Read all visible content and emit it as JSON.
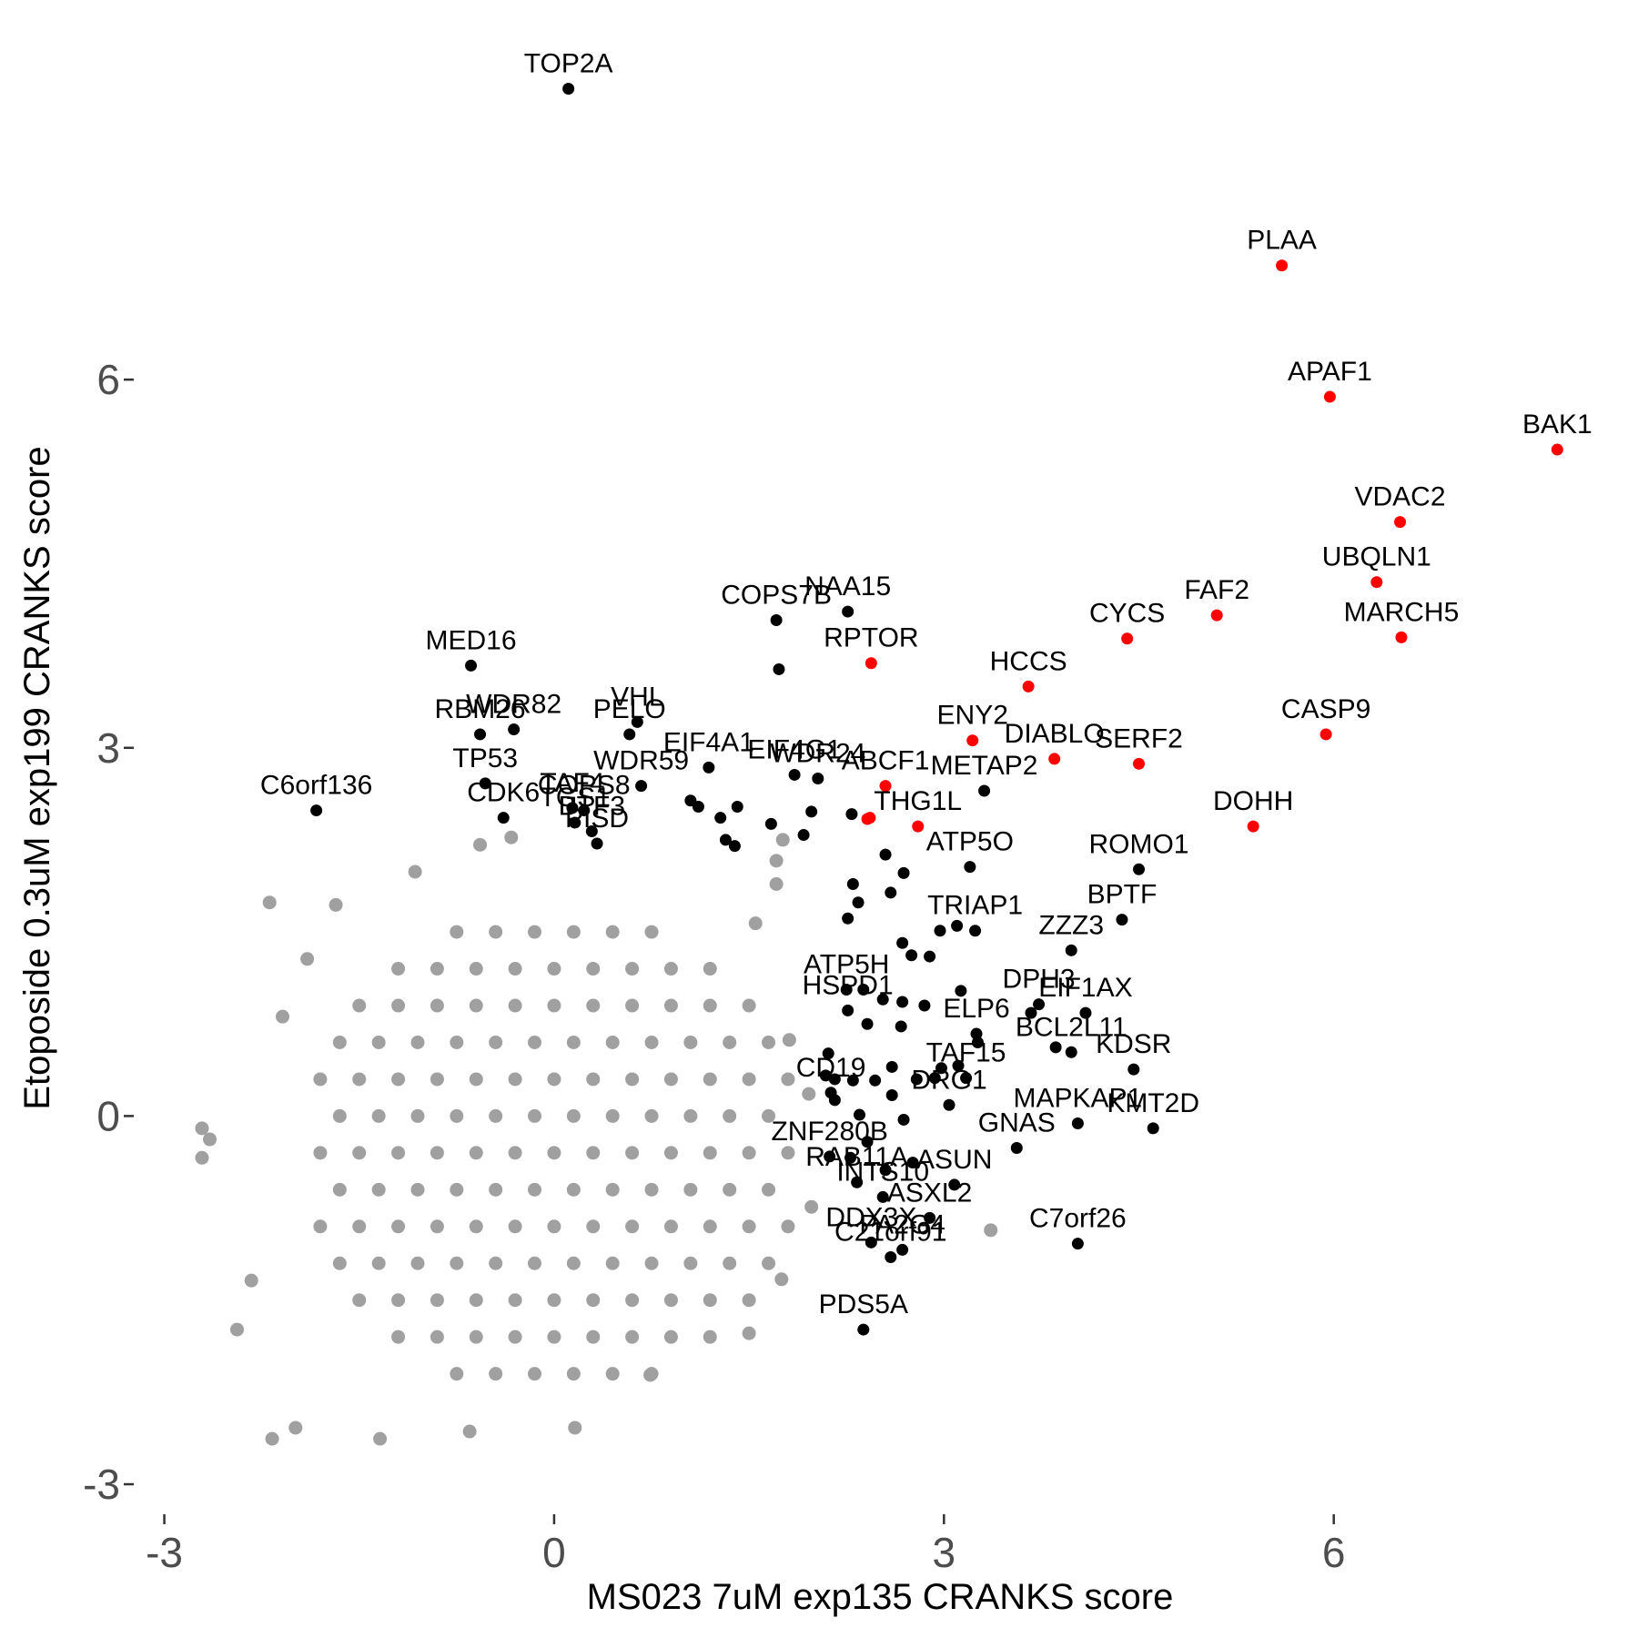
{
  "chart_data": {
    "type": "scatter",
    "x_label": "MS023 7uM exp135 CRANKS score",
    "y_label": "Etoposide 0.3uM exp199 CRANKS score",
    "xlim": [
      -3.2,
      7.9
    ],
    "ylim": [
      -3.2,
      8.7
    ],
    "xticks": [
      -3,
      0,
      3,
      6
    ],
    "yticks": [
      -3,
      0,
      3,
      6
    ],
    "grid": false,
    "series": [
      {
        "color": "#a0a0a0",
        "x": [
          -0.75,
          -0.45,
          -0.15,
          0.15,
          0.45,
          0.75,
          -1.2,
          -0.9,
          -0.6,
          -0.3,
          0,
          0.3,
          0.6,
          0.9,
          1.2,
          -1.5,
          -1.2,
          -0.9,
          -0.6,
          -0.3,
          0,
          0.3,
          0.6,
          0.9,
          1.2,
          1.5,
          -1.65,
          -1.35,
          -1.05,
          -0.75,
          -0.45,
          -0.15,
          0.15,
          0.45,
          0.75,
          1.05,
          1.35,
          1.65,
          -1.8,
          -1.5,
          -1.2,
          -0.9,
          -0.6,
          -0.3,
          0,
          0.3,
          0.6,
          0.9,
          1.2,
          1.5,
          1.8,
          -1.65,
          -1.35,
          -1.05,
          -0.75,
          -0.45,
          -0.15,
          0.15,
          0.45,
          0.75,
          1.05,
          1.35,
          1.65,
          -1.8,
          -1.5,
          -1.2,
          -0.9,
          -0.6,
          -0.3,
          0,
          0.3,
          0.6,
          0.9,
          1.2,
          1.5,
          1.8,
          -1.65,
          -1.35,
          -1.05,
          -0.75,
          -0.45,
          -0.15,
          0.15,
          0.45,
          0.75,
          1.05,
          1.35,
          1.65,
          -1.8,
          -1.5,
          -1.2,
          -0.9,
          -0.6,
          -0.3,
          0,
          0.3,
          0.6,
          0.9,
          1.2,
          1.5,
          1.8,
          -1.65,
          -1.35,
          -1.05,
          -0.75,
          -0.45,
          -0.15,
          0.15,
          0.45,
          0.75,
          1.05,
          1.35,
          1.65,
          -1.5,
          -1.2,
          -0.9,
          -0.6,
          -0.3,
          0,
          0.3,
          0.6,
          0.9,
          1.2,
          1.5,
          -1.2,
          -0.9,
          -0.6,
          -0.3,
          0,
          0.3,
          0.6,
          0.9,
          1.2,
          -0.75,
          -0.45,
          -0.15,
          0.15,
          0.45,
          0.75,
          -2.71,
          -2.65,
          -2.71,
          -2.44,
          -2.17,
          -1.99,
          -2.19,
          -1.9,
          -1.68,
          -2.09,
          -2.33,
          -1.34,
          -0.65,
          0.16,
          0.74,
          1.5,
          1.75,
          1.98,
          3.36,
          1.96,
          1.81,
          1.71,
          1.71,
          1.76,
          1.55,
          -0.57,
          -0.33,
          -1.07
        ],
        "values": [
          1.5,
          1.5,
          1.5,
          1.5,
          1.5,
          1.5,
          1.2,
          1.2,
          1.2,
          1.2,
          1.2,
          1.2,
          1.2,
          1.2,
          1.2,
          0.9,
          0.9,
          0.9,
          0.9,
          0.9,
          0.9,
          0.9,
          0.9,
          0.9,
          0.9,
          0.9,
          0.6,
          0.6,
          0.6,
          0.6,
          0.6,
          0.6,
          0.6,
          0.6,
          0.6,
          0.6,
          0.6,
          0.6,
          0.3,
          0.3,
          0.3,
          0.3,
          0.3,
          0.3,
          0.3,
          0.3,
          0.3,
          0.3,
          0.3,
          0.3,
          0.3,
          0,
          0,
          0,
          0,
          0,
          0,
          0,
          0,
          0,
          0,
          0,
          0,
          -0.3,
          -0.3,
          -0.3,
          -0.3,
          -0.3,
          -0.3,
          -0.3,
          -0.3,
          -0.3,
          -0.3,
          -0.3,
          -0.3,
          -0.3,
          -0.6,
          -0.6,
          -0.6,
          -0.6,
          -0.6,
          -0.6,
          -0.6,
          -0.6,
          -0.6,
          -0.6,
          -0.6,
          -0.6,
          -0.9,
          -0.9,
          -0.9,
          -0.9,
          -0.9,
          -0.9,
          -0.9,
          -0.9,
          -0.9,
          -0.9,
          -0.9,
          -0.9,
          -0.9,
          -1.2,
          -1.2,
          -1.2,
          -1.2,
          -1.2,
          -1.2,
          -1.2,
          -1.2,
          -1.2,
          -1.2,
          -1.2,
          -1.2,
          -1.5,
          -1.5,
          -1.5,
          -1.5,
          -1.5,
          -1.5,
          -1.5,
          -1.5,
          -1.5,
          -1.5,
          -1.5,
          -1.8,
          -1.8,
          -1.8,
          -1.8,
          -1.8,
          -1.8,
          -1.8,
          -1.8,
          -1.8,
          -2.1,
          -2.1,
          -2.1,
          -2.1,
          -2.1,
          -2.1,
          -0.1,
          -0.19,
          -0.34,
          -1.74,
          -2.63,
          -2.54,
          1.74,
          1.28,
          1.72,
          0.81,
          -1.34,
          -2.63,
          -2.57,
          -2.54,
          -2.11,
          -1.77,
          -1.33,
          -0.74,
          -0.93,
          0.18,
          0.62,
          1.89,
          2.08,
          2.25,
          1.57,
          2.21,
          2.27,
          1.99
        ]
      },
      {
        "color": "#000000",
        "x": [
          0.11,
          2.26,
          1.71,
          1.73,
          -0.64,
          -0.31,
          -0.57,
          0.64,
          0.58,
          -0.53,
          0.67,
          1.19,
          1.85,
          2.03,
          -1.83,
          -0.39,
          0.14,
          0.23,
          0.16,
          0.29,
          0.33,
          1.05,
          1.11,
          1.28,
          1.41,
          1.32,
          1.39,
          1.67,
          1.98,
          1.92,
          2.29,
          2.55,
          3.2,
          2.59,
          2.69,
          2.3,
          2.34,
          2.26,
          2.68,
          2.75,
          2.89,
          2.97,
          3.1,
          3.24,
          3.98,
          4.37,
          4.5,
          3.31,
          2.25,
          2.38,
          2.53,
          2.68,
          2.85,
          3.13,
          2.26,
          2.41,
          2.67,
          3.73,
          3.67,
          4.09,
          3.25,
          3.26,
          3.86,
          3.98,
          4.46,
          2.11,
          2.09,
          2.16,
          2.3,
          2.47,
          2.6,
          2.79,
          2.93,
          2.98,
          3.11,
          3.17,
          2.13,
          2.16,
          2.6,
          3.04,
          2.35,
          2.69,
          4.03,
          4.61,
          2.41,
          2.12,
          2.28,
          2.55,
          2.76,
          3.56,
          2.33,
          3.08,
          2.53,
          2.89,
          2.44,
          2.59,
          2.68,
          4.03,
          2.38
        ],
        "values": [
          8.37,
          4.11,
          4.04,
          3.64,
          3.67,
          3.15,
          3.11,
          3.21,
          3.11,
          2.71,
          2.69,
          2.84,
          2.78,
          2.75,
          2.49,
          2.43,
          2.51,
          2.49,
          2.39,
          2.32,
          2.22,
          2.57,
          2.52,
          2.43,
          2.52,
          2.25,
          2.2,
          2.38,
          2.48,
          2.29,
          2.46,
          2.13,
          2.03,
          1.82,
          1.98,
          1.89,
          1.74,
          1.61,
          1.41,
          1.31,
          1.3,
          1.51,
          1.55,
          1.51,
          1.35,
          1.6,
          2.01,
          2.65,
          1.03,
          1.03,
          0.95,
          0.93,
          0.9,
          1.02,
          0.86,
          0.75,
          0.73,
          0.91,
          0.84,
          0.84,
          0.67,
          0.6,
          0.56,
          0.52,
          0.38,
          0.51,
          0.33,
          0.3,
          0.29,
          0.29,
          0.4,
          0.3,
          0.31,
          0.39,
          0.41,
          0.31,
          0.19,
          0.13,
          0.17,
          0.09,
          0.01,
          -0.03,
          -0.06,
          -0.1,
          -0.21,
          -0.33,
          -0.34,
          -0.44,
          -0.38,
          -0.26,
          -0.54,
          -0.56,
          -0.66,
          -0.83,
          -1.03,
          -1.15,
          -1.09,
          -1.04,
          -1.74
        ],
        "labels": [
          "TOP2A",
          "NAA15",
          "COPS7B",
          null,
          "MED16",
          "WDR82",
          "RBM26",
          "VHL",
          "PELO",
          "TP53",
          "WDR59",
          "EIF4A1",
          "EIF4G1",
          "WDR24",
          "C6orf136",
          "CDK6",
          "TAF4",
          "COPS8",
          "TGS1",
          "BTF3",
          "PISD",
          null,
          null,
          null,
          null,
          null,
          null,
          null,
          null,
          null,
          null,
          null,
          "ATP5O",
          null,
          null,
          null,
          null,
          null,
          null,
          null,
          null,
          null,
          null,
          "TRIAP1",
          "ZZZ3",
          "BPTF",
          "ROMO1",
          "METAP2",
          "ATP5H",
          null,
          null,
          null,
          null,
          null,
          "HSPD1",
          null,
          null,
          "DPH3",
          null,
          "EIF1AX",
          "ELP6",
          null,
          null,
          "BCL2L11",
          "KDSR",
          null,
          null,
          null,
          null,
          null,
          null,
          null,
          null,
          null,
          null,
          "TAF15",
          "CD19",
          null,
          null,
          "DRG1",
          null,
          null,
          "MAPKAP1",
          "KMT2D",
          null,
          "ZNF280B",
          null,
          null,
          null,
          "GNAS",
          "RAB11A",
          "ASUN",
          "INTS10",
          "ASXL2",
          "DDX3X",
          "C21orf91",
          "PA2G4",
          "C7orf26",
          "PDS5A"
        ]
      },
      {
        "color": "#ff0000",
        "x": [
          5.6,
          5.97,
          7.72,
          6.51,
          6.33,
          6.52,
          5.1,
          4.41,
          3.65,
          2.44,
          3.22,
          3.85,
          4.5,
          5.94,
          2.55,
          5.38,
          2.8,
          2.43,
          2.41
        ],
        "values": [
          6.93,
          5.86,
          5.43,
          4.84,
          4.35,
          3.9,
          4.08,
          3.89,
          3.5,
          3.69,
          3.06,
          2.91,
          2.87,
          3.11,
          2.69,
          2.36,
          2.36,
          2.43,
          2.42
        ],
        "labels": [
          "PLAA",
          "APAF1",
          "BAK1",
          "VDAC2",
          "UBQLN1",
          "MARCH5",
          "FAF2",
          "CYCS",
          "HCCS",
          "RPTOR",
          "ENY2",
          "DIABLO",
          "SERF2",
          "CASP9",
          "ABCF1",
          "DOHH",
          "THG1L",
          null,
          null
        ]
      }
    ]
  }
}
